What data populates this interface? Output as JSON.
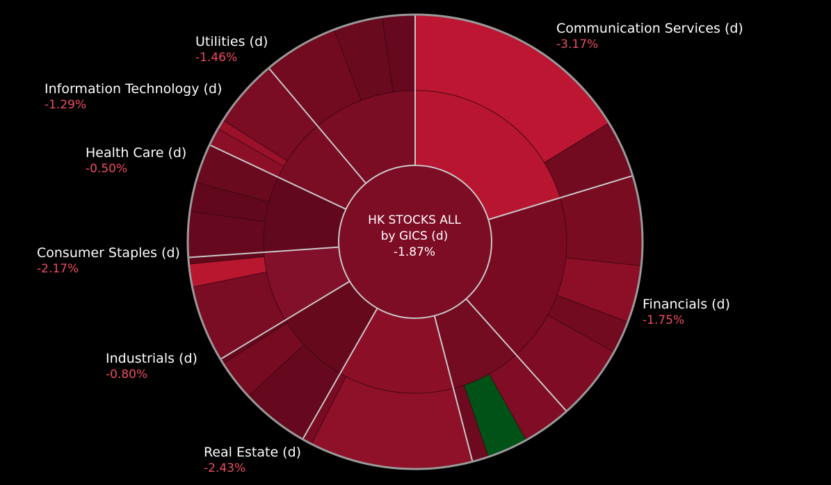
{
  "chart_data": {
    "type": "sunburst",
    "center": {
      "title_line1": "HK STOCKS ALL",
      "title_line2": "by GICS (d)",
      "change": "-1.87%"
    },
    "sectors": [
      {
        "name": "Communication Services (d)",
        "change": "-3.17%",
        "change_value": -3.17,
        "color": "#b71530",
        "children": [
          {
            "weight": 0.14,
            "color": "#bc1632"
          },
          {
            "weight": 0.035,
            "color": "#720a20"
          }
        ]
      },
      {
        "name": "Financials (d)",
        "change": "-1.75%",
        "change_value": -1.75,
        "color": "#780b22",
        "children": [
          {
            "weight": 0.055,
            "color": "#7a0c22"
          },
          {
            "weight": 0.035,
            "color": "#8c0f27"
          },
          {
            "weight": 0.02,
            "color": "#720a20"
          },
          {
            "weight": 0.046,
            "color": "#7e0c24"
          }
        ]
      },
      {
        "name": "Real Estate (d)",
        "change": "-2.43%",
        "change_value": -2.43,
        "color": "#730b21",
        "children": [
          {
            "weight": 0.03,
            "color": "#800d25"
          },
          {
            "weight": 0.025,
            "color": "#005216"
          },
          {
            "weight": 0.01,
            "color": "#6e0a20"
          },
          {
            "weight": 0.0,
            "color": "#730b21"
          }
        ]
      },
      {
        "name": "Industrials (d)",
        "change": "-0.80%",
        "change_value": -0.8,
        "color": "#8c0f28",
        "children": [
          {
            "weight": 0.1,
            "color": "#8f1029"
          },
          {
            "weight": 0.006,
            "color": "#780b22"
          }
        ]
      },
      {
        "name": "Consumer Staples (d)",
        "change": "-2.17%",
        "change_value": -2.17,
        "color": "#66091d",
        "children": [
          {
            "weight": 0.042,
            "color": "#66091e"
          },
          {
            "weight": 0.025,
            "color": "#760b22"
          },
          {
            "weight": 0.003,
            "color": "#66091d"
          }
        ]
      },
      {
        "name": "Health Care (d)",
        "change": "-0.50%",
        "change_value": -0.5,
        "color": "#83102a",
        "children": [
          {
            "weight": 0.047,
            "color": "#7a0c24"
          },
          {
            "weight": 0.014,
            "color": "#b9172f"
          },
          {
            "weight": 0.004,
            "color": "#62081c"
          }
        ]
      },
      {
        "name": "Information Technology (d)",
        "change": "-1.29%",
        "change_value": -1.29,
        "color": "#62081c",
        "children": [
          {
            "weight": 0.028,
            "color": "#66091e"
          },
          {
            "weight": 0.018,
            "color": "#62081c"
          },
          {
            "weight": 0.024,
            "color": "#6a0a1f"
          }
        ]
      },
      {
        "name": "Utilities (d)",
        "change": "-1.46%",
        "change_value": -1.46,
        "color": "#7a0c24",
        "children": [
          {
            "weight": 0.011,
            "color": "#8b0f27"
          },
          {
            "weight": 0.006,
            "color": "#9a1129"
          },
          {
            "weight": 0.042,
            "color": "#7a0c24"
          }
        ]
      },
      {
        "name": "",
        "change": "",
        "color": "#7a0c24",
        "children": [
          {
            "weight": 0.046,
            "color": "#720a20"
          },
          {
            "weight": 0.03,
            "color": "#6a0a1f"
          },
          {
            "weight": 0.02,
            "color": "#66091e"
          }
        ]
      }
    ],
    "colors": {
      "background": "#000000",
      "center_fill": "#7d0c25",
      "separator": "#c9c9c9",
      "outer_ring": "#9a9a9a",
      "label_text": "#ffffff",
      "change_text": "#ef4d61"
    }
  }
}
